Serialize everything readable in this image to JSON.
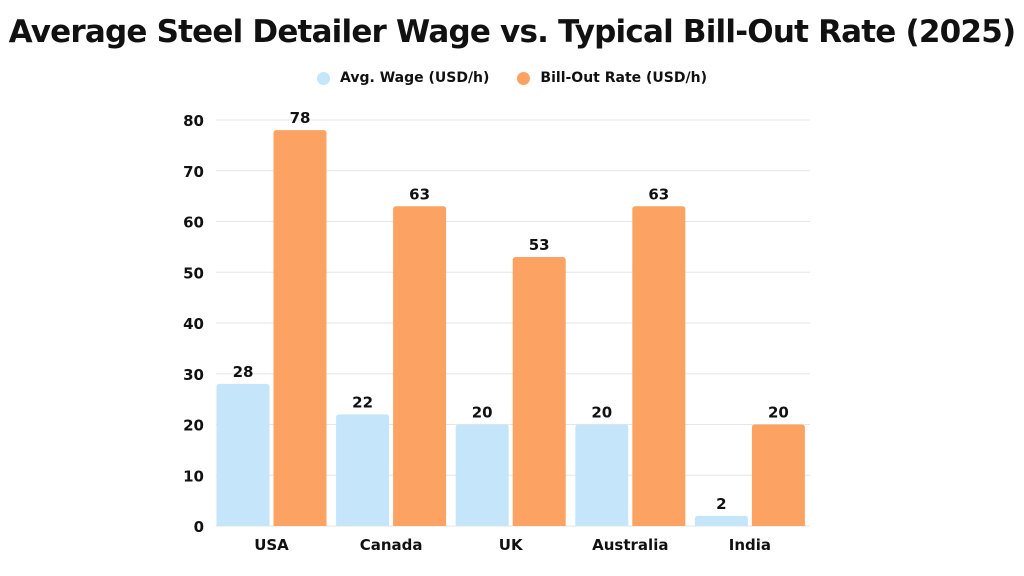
{
  "chart_data": {
    "type": "bar",
    "title": "Average Steel Detailer Wage vs. Typical Bill-Out Rate (2025)",
    "xlabel": "",
    "ylabel": "",
    "categories": [
      "USA",
      "Canada",
      "UK",
      "Australia",
      "India"
    ],
    "series": [
      {
        "name": "Avg. Wage (USD/h)",
        "color": "#c5e5fb",
        "values": [
          28,
          22,
          20,
          20,
          2
        ]
      },
      {
        "name": "Bill-Out Rate (USD/h)",
        "color": "#fca262",
        "values": [
          78,
          63,
          53,
          63,
          20
        ]
      }
    ],
    "ylim": [
      0,
      80
    ],
    "yticks": [
      0,
      10,
      20,
      30,
      40,
      50,
      60,
      70,
      80
    ],
    "grid": true,
    "legend_position": "top-center",
    "data_labels": true
  }
}
